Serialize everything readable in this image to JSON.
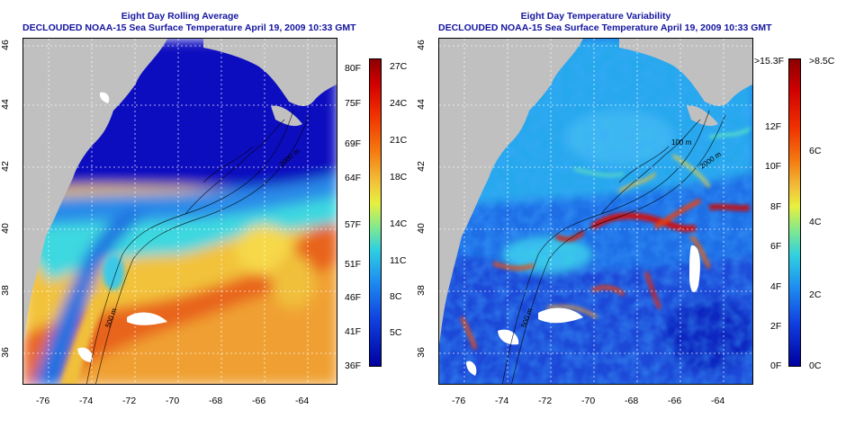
{
  "left_panel": {
    "title_line1": "Eight Day Rolling Average",
    "title_line2": "DECLOUDED NOAA-15 Sea Surface Temperature April 19, 2009 10:33 GMT",
    "colorbar_f": [
      "80F",
      "75F",
      "69F",
      "64F",
      "57F",
      "51F",
      "46F",
      "41F",
      "36F"
    ],
    "colorbar_c": [
      "27C",
      "24C",
      "21C",
      "18C",
      "14C",
      "11C",
      "8C",
      "5C"
    ],
    "contours": [
      "500 m",
      "2000 m"
    ]
  },
  "right_panel": {
    "title_line1": "Eight Day Temperature Variability",
    "title_line2": "DECLOUDED NOAA-15 Sea Surface Temperature April 19, 2009 10:33 GMT",
    "colorbar_f": [
      ">15.3F",
      "12F",
      "10F",
      "8F",
      "6F",
      "4F",
      "2F",
      "0F"
    ],
    "colorbar_c": [
      ">8.5C",
      "6C",
      "4C",
      "2C",
      "0C"
    ],
    "contours": [
      "100 m",
      "500 m",
      "2000 m"
    ]
  },
  "axes": {
    "lon_ticks": [
      "-76",
      "-74",
      "-72",
      "-70",
      "-68",
      "-66",
      "-64"
    ],
    "lat_ticks": [
      "46",
      "44",
      "42",
      "40",
      "38",
      "36"
    ]
  },
  "colors": {
    "land": "#c0c0c0",
    "title": "#1414a0"
  }
}
